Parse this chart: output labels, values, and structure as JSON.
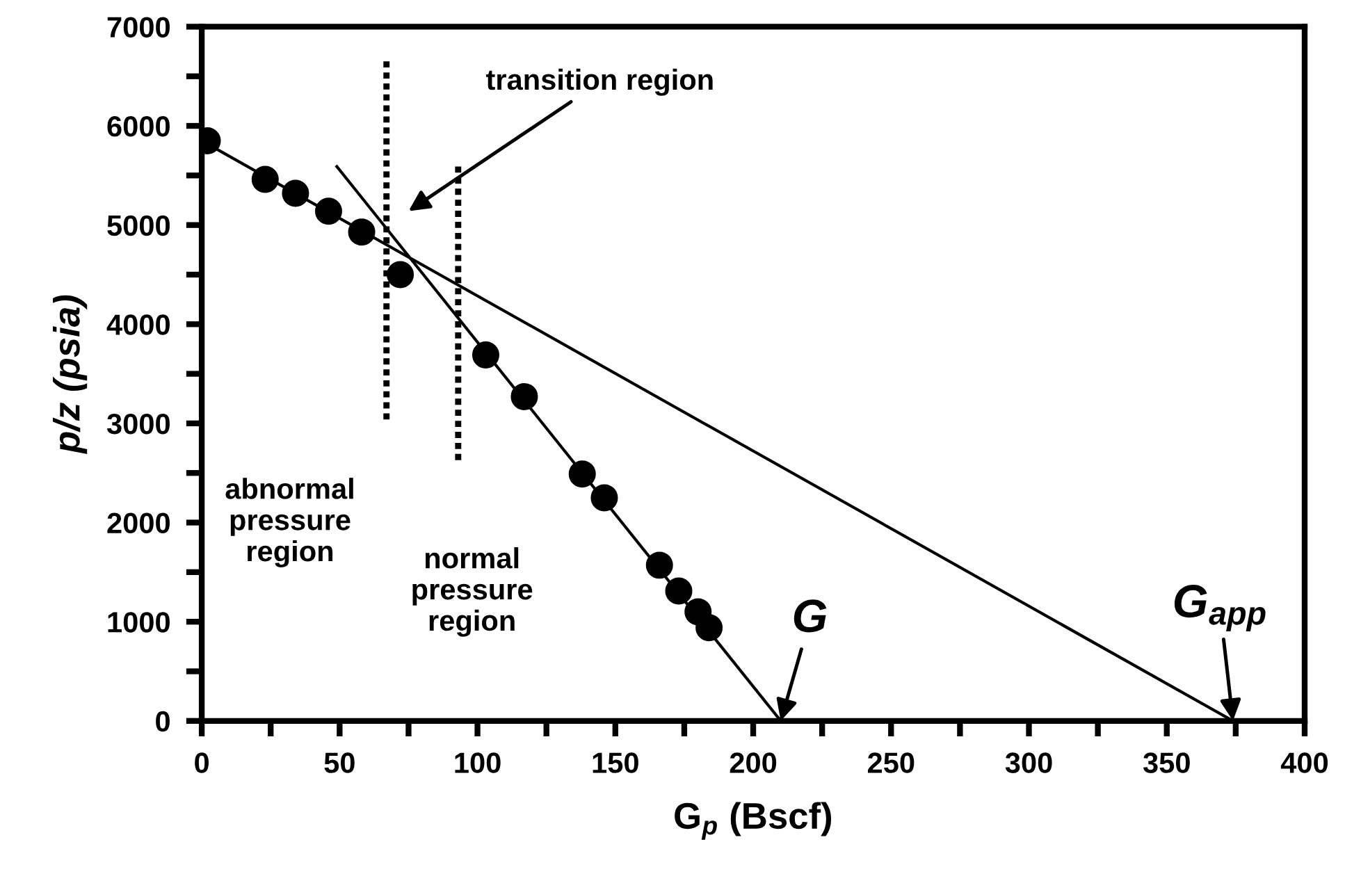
{
  "chart_data": {
    "type": "scatter",
    "xlabel": "G$_{p}$ (Bscf)",
    "ylabel": "p/z (psia)",
    "xlim": [
      0,
      400
    ],
    "ylim": [
      0,
      7000
    ],
    "xticks": [
      0,
      {
        "value": 25,
        "label": null
      },
      50,
      {
        "value": 75,
        "label": null
      },
      100,
      {
        "value": 125,
        "label": null
      },
      150,
      {
        "value": 175,
        "label": null
      },
      200,
      {
        "value": 225,
        "label": null
      },
      250,
      {
        "value": 275,
        "label": null
      },
      300,
      {
        "value": 325,
        "label": null
      },
      350,
      {
        "value": 375,
        "label": null
      },
      400
    ],
    "yticks": [
      0,
      {
        "value": 500,
        "label": null
      },
      1000,
      {
        "value": 1500,
        "label": null
      },
      2000,
      {
        "value": 2500,
        "label": null
      },
      3000,
      {
        "value": 3500,
        "label": null
      },
      4000,
      {
        "value": 4500,
        "label": null
      },
      5000,
      {
        "value": 5500,
        "label": null
      },
      6000,
      {
        "value": 6500,
        "label": null
      },
      7000
    ],
    "grid": false,
    "legend": false,
    "series": [
      {
        "color": "#000000",
        "marker": "circle",
        "x": [
          2,
          23,
          34,
          46,
          58,
          72,
          103,
          117,
          138,
          146,
          166,
          173,
          180,
          184
        ],
        "values": [
          5850,
          5460,
          5320,
          5140,
          4930,
          4500,
          3690,
          3270,
          2490,
          2250,
          1570,
          1310,
          1100,
          940
        ]
      },
      {
        "type": "line",
        "color": "#000000",
        "line_style": "solid",
        "x": [
          0,
          374
        ],
        "values": [
          5850,
          0
        ]
      },
      {
        "type": "line",
        "color": "#000000",
        "line_style": "solid",
        "x": [
          49,
          210
        ],
        "values": [
          5590,
          0
        ]
      },
      {
        "type": "line",
        "color": "#000000",
        "line_style": "dotted",
        "x": [
          67,
          67
        ],
        "values": [
          6650,
          3040
        ]
      },
      {
        "type": "line",
        "color": "#000000",
        "line_style": "dotted",
        "x": [
          93,
          93
        ],
        "values": [
          5590,
          2630
        ]
      }
    ],
    "annotations": [
      "transition region",
      {
        "text": "G",
        "x": 210,
        "y": 0
      },
      {
        "text": "G$_{app}$",
        "x": 374,
        "y": 0
      },
      "abnormal\npressure\nregion",
      "normal\npressure\nregion"
    ]
  }
}
